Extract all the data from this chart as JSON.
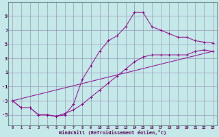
{
  "xlabel": "Windchill (Refroidissement éolien,°C)",
  "xlim": [
    -0.5,
    23.5
  ],
  "ylim": [
    -6.5,
    11
  ],
  "xticks": [
    0,
    1,
    2,
    3,
    4,
    5,
    6,
    7,
    8,
    9,
    10,
    11,
    12,
    13,
    14,
    15,
    16,
    17,
    18,
    19,
    20,
    21,
    22,
    23
  ],
  "yticks": [
    -5,
    -3,
    -1,
    1,
    3,
    5,
    7,
    9
  ],
  "background_color": "#c5e8e8",
  "grid_color": "#9999bb",
  "line_color": "#880088",
  "curve1_x": [
    0,
    1,
    2,
    3,
    4,
    5,
    6,
    7,
    8,
    9,
    10,
    11,
    12,
    13,
    14,
    15,
    16,
    17,
    18,
    19,
    20,
    21,
    22,
    23
  ],
  "curve1_y": [
    -3,
    -4,
    -4,
    -5,
    -5,
    -5.2,
    -5,
    -3.5,
    0,
    2,
    4,
    5.5,
    6.2,
    7.5,
    9.5,
    9.5,
    7.5,
    7,
    6.5,
    6,
    6,
    5.5,
    5.3,
    5.2
  ],
  "curve2_x": [
    0,
    1,
    2,
    3,
    4,
    5,
    6,
    7,
    8,
    9,
    10,
    11,
    12,
    13,
    14,
    15,
    16,
    17,
    18,
    19,
    20,
    21,
    22,
    23
  ],
  "curve2_y": [
    -3,
    -4,
    -4,
    -5,
    -5,
    -5.2,
    -4.8,
    -4.3,
    -3.5,
    -2.5,
    -1.5,
    -0.5,
    0.5,
    1.5,
    2.5,
    3.2,
    3.5,
    3.5,
    3.5,
    3.5,
    3.5,
    4,
    4.2,
    4
  ],
  "curve3_x": [
    0,
    23
  ],
  "curve3_y": [
    -3,
    4
  ]
}
